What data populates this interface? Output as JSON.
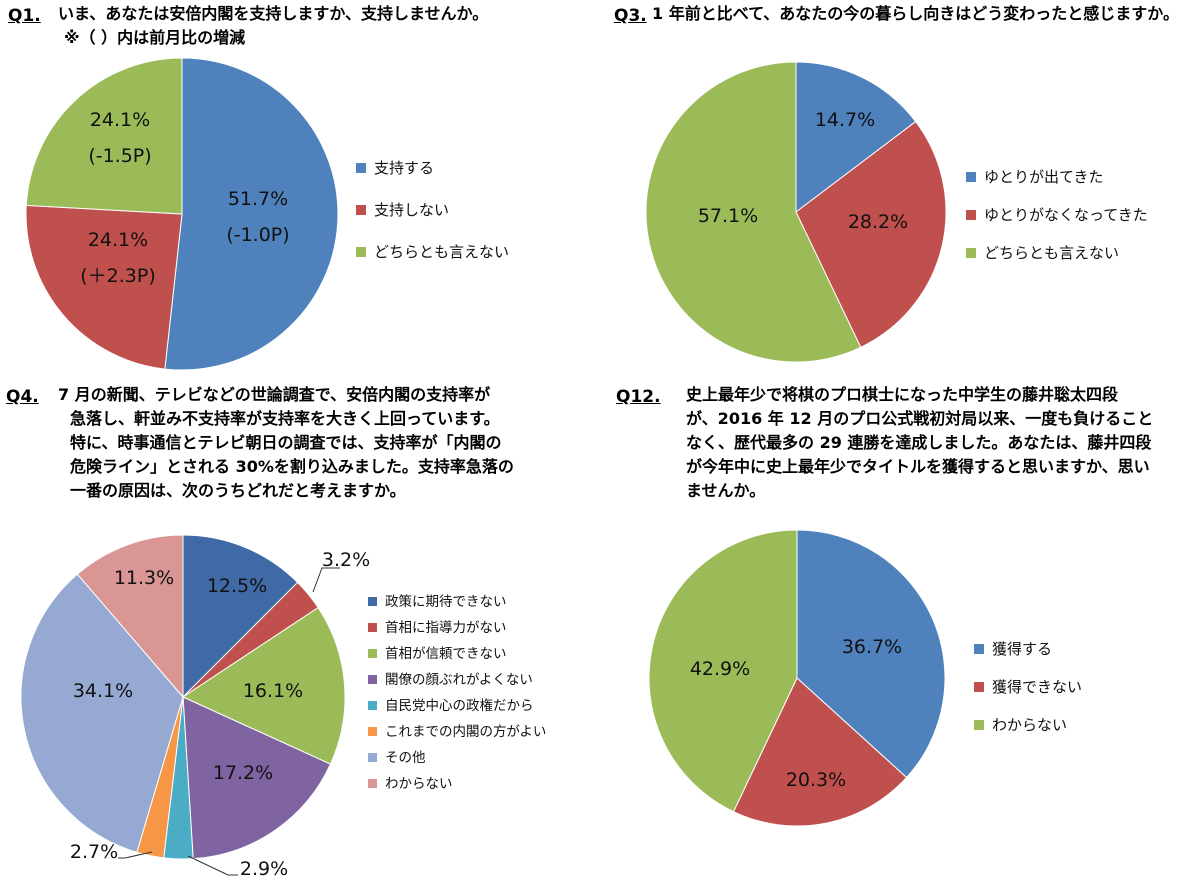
{
  "colors": {
    "blue": "#4f81bd",
    "red": "#c0504d",
    "green": "#9bbb59",
    "purple": "#8064a2",
    "teal": "#4bacc6",
    "orange": "#f79646",
    "lightblue": "#95a9d3",
    "pink": "#d99694",
    "navy": "#3f6aa6"
  },
  "questions": {
    "q1": {
      "number": "Q1.",
      "lines": [
        "いま、あなたは安倍内閣を支持しますか、支持しませんか。",
        "※（  ）内は前月比の増減"
      ]
    },
    "q3": {
      "number": "Q3.",
      "lines": [
        "1 年前と比べて、あなたの今の暮らし向きはどう変わったと感じますか。"
      ]
    },
    "q4": {
      "number": "Q4.",
      "lines": [
        "7 月の新聞、テレビなどの世論調査で、安倍内閣の支持率が",
        "急落し、軒並み不支持率が支持率を大きく上回っています。",
        "特に、時事通信とテレビ朝日の調査では、支持率が「内閣の",
        "危険ライン」とされる 30%を割り込みました。支持率急落の",
        "一番の原因は、次のうちどれだと考えますか。"
      ]
    },
    "q12": {
      "number": "Q12.",
      "lines": [
        "史上最年少で将棋のプロ棋士になった中学生の藤井聡太四段",
        "が、2016 年 12 月のプロ公式戦初対局以来、一度も負けること",
        "なく、歴代最多の 29 連勝を達成しました。あなたは、藤井四段",
        "が今年中に史上最年少でタイトルを獲得すると思いますか、思い",
        "ませんか。"
      ]
    }
  },
  "chart_data": [
    {
      "id": "q1",
      "type": "pie",
      "categories": [
        "支持する",
        "支持しない",
        "どちらとも言えない"
      ],
      "values": [
        51.7,
        24.1,
        24.1
      ],
      "labels": [
        "51.7%",
        "24.1%",
        "24.1%"
      ],
      "changes": [
        "(-1.0P)",
        "(＋2.3P)",
        "(-1.5P)"
      ],
      "colors": [
        "#4f81bd",
        "#c0504d",
        "#9bbb59"
      ],
      "legend": "right"
    },
    {
      "id": "q3",
      "type": "pie",
      "categories": [
        "ゆとりが出てきた",
        "ゆとりがなくなってきた",
        "どちらとも言えない"
      ],
      "values": [
        14.7,
        28.2,
        57.1
      ],
      "labels": [
        "14.7%",
        "28.2%",
        "57.1%"
      ],
      "colors": [
        "#4f81bd",
        "#c0504d",
        "#9bbb59"
      ],
      "legend": "right"
    },
    {
      "id": "q4",
      "type": "pie",
      "categories": [
        "政策に期待できない",
        "首相に指導力がない",
        "首相が信頼できない",
        "閣僚の顔ぶれがよくない",
        "自民党中心の政権だから",
        "これまでの内閣の方がよい",
        "その他",
        "わからない"
      ],
      "values": [
        12.5,
        3.2,
        16.1,
        17.2,
        2.9,
        2.7,
        34.1,
        11.3
      ],
      "labels": [
        "12.5%",
        "3.2%",
        "16.1%",
        "17.2%",
        "2.9%",
        "2.7%",
        "34.1%",
        "11.3%"
      ],
      "colors": [
        "#3f6aa6",
        "#c0504d",
        "#9bbb59",
        "#8064a2",
        "#4bacc6",
        "#f79646",
        "#95a9d3",
        "#d99694"
      ],
      "legend": "right"
    },
    {
      "id": "q12",
      "type": "pie",
      "categories": [
        "獲得する",
        "獲得できない",
        "わからない"
      ],
      "values": [
        36.7,
        20.3,
        42.9
      ],
      "labels": [
        "36.7%",
        "20.3%",
        "42.9%"
      ],
      "colors": [
        "#4f81bd",
        "#c0504d",
        "#9bbb59"
      ],
      "legend": "right"
    }
  ]
}
